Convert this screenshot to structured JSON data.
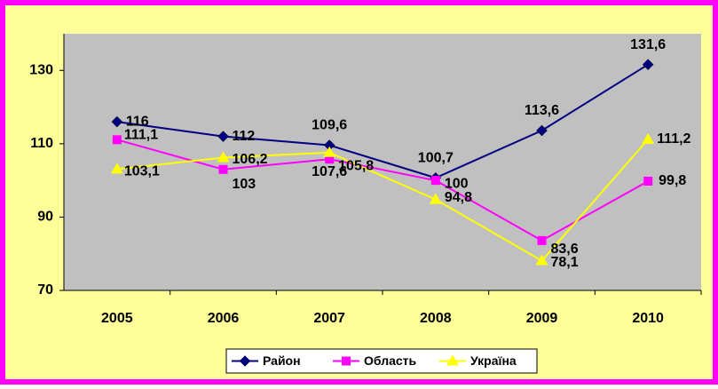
{
  "chart_data": {
    "type": "line",
    "categories": [
      "2005",
      "2006",
      "2007",
      "2008",
      "2009",
      "2010"
    ],
    "series": [
      {
        "name": "Район",
        "color": "#000080",
        "marker": "diamond",
        "values": [
          116,
          112,
          109.6,
          100.7,
          113.6,
          131.6
        ],
        "value_labels": [
          "116",
          "112",
          "109,6",
          "100,7",
          "113,6",
          "131,6"
        ]
      },
      {
        "name": "Область",
        "color": "#FF00FF",
        "marker": "square",
        "values": [
          111.1,
          103,
          105.8,
          100,
          83.6,
          99.8
        ],
        "value_labels": [
          "111,1",
          "103",
          "105,8",
          "100",
          "83,6",
          "99,8"
        ]
      },
      {
        "name": "Україна",
        "color": "#FFFF00",
        "marker": "triangle",
        "values": [
          103.1,
          106.2,
          107.6,
          94.8,
          78.1,
          111.2
        ],
        "value_labels": [
          "103,1",
          "106,2",
          "107,6",
          "94,8",
          "78,1",
          "111,2"
        ]
      }
    ],
    "ylim": [
      70,
      140
    ],
    "yticks": [
      70,
      90,
      110,
      130
    ],
    "legend": "bottom"
  }
}
